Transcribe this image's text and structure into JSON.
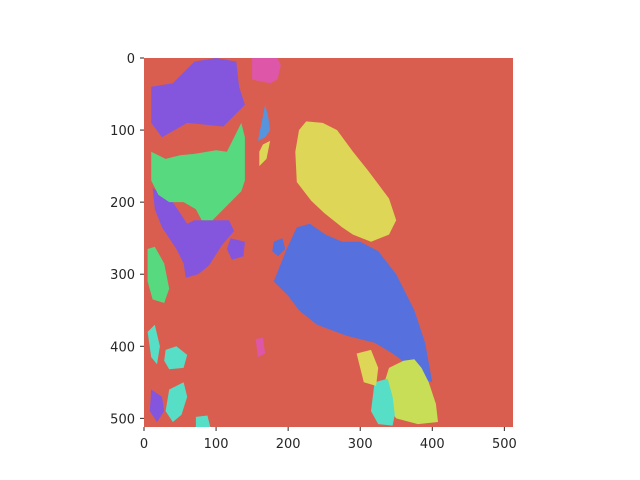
{
  "chart_data": {
    "type": "heatmap",
    "title": "",
    "xlabel": "",
    "ylabel": "",
    "xlim": [
      0,
      512
    ],
    "ylim": [
      512,
      0
    ],
    "y_inverted": true,
    "grid": false,
    "legend": "none",
    "x_ticks": [
      0,
      100,
      200,
      300,
      400,
      500
    ],
    "y_ticks": [
      0,
      100,
      200,
      300,
      400,
      500
    ],
    "x_tick_labels": [
      "0",
      "100",
      "200",
      "300",
      "400",
      "500"
    ],
    "y_tick_labels": [
      "0",
      "100",
      "200",
      "300",
      "400",
      "500"
    ],
    "background_color": "#d95e50",
    "segments": [
      {
        "color": "#8456de",
        "polygon": [
          [
            10,
            40
          ],
          [
            40,
            35
          ],
          [
            70,
            5
          ],
          [
            100,
            0
          ],
          [
            128,
            5
          ],
          [
            132,
            40
          ],
          [
            140,
            65
          ],
          [
            110,
            95
          ],
          [
            60,
            90
          ],
          [
            25,
            110
          ],
          [
            10,
            90
          ]
        ]
      },
      {
        "color": "#8456de",
        "polygon": [
          [
            12,
            180
          ],
          [
            40,
            200
          ],
          [
            60,
            230
          ],
          [
            70,
            225
          ],
          [
            88,
            225
          ],
          [
            118,
            225
          ],
          [
            125,
            240
          ],
          [
            108,
            260
          ],
          [
            90,
            288
          ],
          [
            75,
            300
          ],
          [
            58,
            305
          ],
          [
            55,
            285
          ],
          [
            45,
            265
          ],
          [
            25,
            235
          ],
          [
            15,
            210
          ]
        ]
      },
      {
        "color": "#56d97f",
        "polygon": [
          [
            10,
            130
          ],
          [
            30,
            140
          ],
          [
            50,
            135
          ],
          [
            70,
            133
          ],
          [
            100,
            128
          ],
          [
            115,
            130
          ],
          [
            135,
            90
          ],
          [
            140,
            110
          ],
          [
            140,
            135
          ],
          [
            140,
            170
          ],
          [
            135,
            185
          ],
          [
            115,
            205
          ],
          [
            95,
            225
          ],
          [
            80,
            225
          ],
          [
            72,
            210
          ],
          [
            55,
            200
          ],
          [
            35,
            200
          ],
          [
            20,
            190
          ],
          [
            10,
            170
          ]
        ]
      },
      {
        "color": "#de56a8",
        "polygon": [
          [
            150,
            0
          ],
          [
            185,
            0
          ],
          [
            190,
            10
          ],
          [
            185,
            30
          ],
          [
            175,
            35
          ],
          [
            150,
            30
          ]
        ]
      },
      {
        "color": "#5694de",
        "polygon": [
          [
            168,
            65
          ],
          [
            172,
            80
          ],
          [
            175,
            100
          ],
          [
            168,
            110
          ],
          [
            158,
            115
          ]
        ]
      },
      {
        "color": "#ded656",
        "polygon": [
          [
            160,
            130
          ],
          [
            165,
            120
          ],
          [
            175,
            115
          ],
          [
            170,
            140
          ],
          [
            160,
            150
          ]
        ]
      },
      {
        "color": "#ded656",
        "polygon": [
          [
            215,
            100
          ],
          [
            225,
            88
          ],
          [
            248,
            90
          ],
          [
            268,
            100
          ],
          [
            290,
            130
          ],
          [
            310,
            155
          ],
          [
            340,
            195
          ],
          [
            350,
            225
          ],
          [
            340,
            245
          ],
          [
            315,
            255
          ],
          [
            290,
            245
          ],
          [
            275,
            235
          ],
          [
            250,
            215
          ],
          [
            232,
            198
          ],
          [
            212,
            172
          ],
          [
            210,
            130
          ]
        ]
      },
      {
        "color": "#5670de",
        "polygon": [
          [
            212,
            235
          ],
          [
            230,
            230
          ],
          [
            252,
            245
          ],
          [
            275,
            255
          ],
          [
            300,
            255
          ],
          [
            325,
            268
          ],
          [
            350,
            300
          ],
          [
            375,
            350
          ],
          [
            390,
            395
          ],
          [
            400,
            450
          ],
          [
            385,
            445
          ],
          [
            365,
            425
          ],
          [
            345,
            410
          ],
          [
            320,
            395
          ],
          [
            280,
            385
          ],
          [
            240,
            370
          ],
          [
            215,
            350
          ],
          [
            200,
            330
          ],
          [
            180,
            310
          ],
          [
            188,
            290
          ],
          [
            198,
            265
          ]
        ]
      },
      {
        "color": "#c8de56",
        "polygon": [
          [
            340,
            430
          ],
          [
            360,
            420
          ],
          [
            375,
            418
          ],
          [
            385,
            430
          ],
          [
            395,
            450
          ],
          [
            405,
            480
          ],
          [
            408,
            505
          ],
          [
            380,
            508
          ],
          [
            350,
            500
          ],
          [
            335,
            480
          ],
          [
            332,
            455
          ]
        ]
      },
      {
        "color": "#56dec6",
        "polygon": [
          [
            320,
            450
          ],
          [
            338,
            445
          ],
          [
            345,
            470
          ],
          [
            348,
            495
          ],
          [
            345,
            510
          ],
          [
            325,
            508
          ],
          [
            315,
            490
          ]
        ]
      },
      {
        "color": "#ded656",
        "polygon": [
          [
            295,
            410
          ],
          [
            315,
            405
          ],
          [
            325,
            430
          ],
          [
            322,
            455
          ],
          [
            305,
            450
          ]
        ]
      },
      {
        "color": "#56dec6",
        "polygon": [
          [
            30,
            405
          ],
          [
            45,
            400
          ],
          [
            60,
            412
          ],
          [
            55,
            430
          ],
          [
            35,
            432
          ],
          [
            28,
            420
          ]
        ]
      },
      {
        "color": "#56dec6",
        "polygon": [
          [
            35,
            460
          ],
          [
            55,
            450
          ],
          [
            60,
            470
          ],
          [
            52,
            495
          ],
          [
            40,
            505
          ],
          [
            30,
            490
          ]
        ]
      },
      {
        "color": "#56dec6",
        "polygon": [
          [
            5,
            380
          ],
          [
            15,
            370
          ],
          [
            22,
            400
          ],
          [
            18,
            425
          ],
          [
            10,
            415
          ]
        ]
      },
      {
        "color": "#56d97f",
        "polygon": [
          [
            5,
            265
          ],
          [
            15,
            262
          ],
          [
            28,
            285
          ],
          [
            35,
            320
          ],
          [
            28,
            340
          ],
          [
            12,
            335
          ],
          [
            5,
            310
          ]
        ]
      },
      {
        "color": "#8456de",
        "polygon": [
          [
            10,
            460
          ],
          [
            25,
            470
          ],
          [
            28,
            490
          ],
          [
            18,
            505
          ],
          [
            8,
            490
          ]
        ]
      },
      {
        "color": "#56dec6",
        "polygon": [
          [
            72,
            498
          ],
          [
            88,
            496
          ],
          [
            92,
            512
          ],
          [
            72,
            512
          ]
        ]
      },
      {
        "color": "#5670de",
        "polygon": [
          [
            180,
            255
          ],
          [
            192,
            250
          ],
          [
            196,
            265
          ],
          [
            186,
            275
          ],
          [
            178,
            268
          ]
        ]
      },
      {
        "color": "#de56a8",
        "polygon": [
          [
            155,
            390
          ],
          [
            165,
            388
          ],
          [
            168,
            410
          ],
          [
            158,
            415
          ]
        ]
      },
      {
        "color": "#8456de",
        "polygon": [
          [
            120,
            250
          ],
          [
            140,
            255
          ],
          [
            138,
            275
          ],
          [
            122,
            280
          ],
          [
            115,
            265
          ]
        ]
      }
    ]
  }
}
